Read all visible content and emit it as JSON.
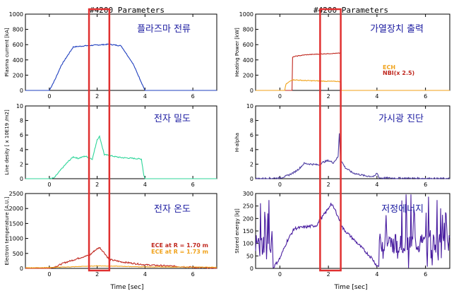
{
  "columns": [
    {
      "title": "#4200 Parameters"
    },
    {
      "title": "#4200 Parameters"
    }
  ],
  "chart_data": [
    {
      "id": "plasma-current",
      "type": "line",
      "label_kr": "플라즈마 전류",
      "ylabel": "Plasma current [kA]",
      "ylim": [
        0,
        1000
      ],
      "yticks": [
        "0",
        "200",
        "400",
        "600",
        "800",
        "1000"
      ],
      "ytick_values": [
        0,
        200,
        400,
        600,
        800,
        1000
      ],
      "xlim": [
        -1,
        7
      ],
      "xticks": [
        "0",
        "2",
        "4",
        "6"
      ],
      "xtick_values": [
        0,
        2,
        4,
        6
      ],
      "series": [
        {
          "color": "#1f3fbf",
          "noise": 6,
          "x": [
            -1,
            0,
            0.25,
            0.5,
            1,
            1.5,
            2,
            2.5,
            3,
            3.5,
            4,
            4.5,
            7
          ],
          "y": [
            0,
            0,
            150,
            330,
            570,
            585,
            595,
            605,
            585,
            350,
            0,
            0,
            0
          ]
        }
      ]
    },
    {
      "id": "line-density",
      "type": "line",
      "label_kr": "전자 밀도",
      "ylabel": "Line desity [ x 10E19 /m2]",
      "ylim": [
        0,
        10
      ],
      "yticks": [
        "0",
        "2",
        "4",
        "6",
        "8",
        "10"
      ],
      "ytick_values": [
        0,
        2,
        4,
        6,
        8,
        10
      ],
      "xlim": [
        -1,
        7
      ],
      "xticks": [
        "0",
        "2",
        "4",
        "6"
      ],
      "xtick_values": [
        0,
        2,
        4,
        6
      ],
      "series": [
        {
          "color": "#2fd69a",
          "noise": 0.08,
          "x": [
            -1,
            0,
            0.2,
            0.5,
            0.8,
            1,
            1.2,
            1.5,
            1.8,
            2,
            2.1,
            2.3,
            2.5,
            2.8,
            3,
            3.5,
            3.85,
            3.95,
            4,
            7
          ],
          "y": [
            0,
            0,
            0.1,
            1.3,
            2.4,
            3,
            2.8,
            3.1,
            2.7,
            5.4,
            5.8,
            3.3,
            3.2,
            3,
            2.9,
            2.8,
            2.7,
            0.5,
            0,
            0
          ]
        }
      ]
    },
    {
      "id": "electron-temperature",
      "type": "line",
      "label_kr": "전자 온도",
      "ylabel": "Electron temperature [A.U.]",
      "ylim": [
        0,
        2500
      ],
      "yticks": [
        "0",
        "500",
        "1000",
        "1500",
        "2000",
        "2500"
      ],
      "ytick_values": [
        0,
        500,
        1000,
        1500,
        2000,
        2500
      ],
      "xlim": [
        -1,
        7
      ],
      "xticks": [
        "0",
        "2",
        "4",
        "6"
      ],
      "xtick_values": [
        0,
        2,
        4,
        6
      ],
      "series": [
        {
          "name": "ECE at R = 1.70 m",
          "color": "#c0281f",
          "noise": 25,
          "x": [
            -1,
            0,
            0.3,
            0.6,
            1,
            1.3,
            1.7,
            1.9,
            2.1,
            2.3,
            2.5,
            3,
            3.5,
            4,
            7
          ],
          "y": [
            0,
            0,
            70,
            180,
            280,
            360,
            450,
            600,
            700,
            520,
            300,
            220,
            170,
            120,
            0
          ]
        },
        {
          "name": "ECE at R = 1.73 m",
          "color": "#f0a21a",
          "noise": 8,
          "x": [
            -1,
            0,
            1,
            2,
            3,
            4,
            7
          ],
          "y": [
            20,
            30,
            55,
            85,
            70,
            50,
            40
          ]
        }
      ]
    },
    {
      "id": "heating-power",
      "type": "line",
      "label_kr": "가열장치 출력",
      "ylabel": "Heating Power [kW]",
      "ylim": [
        0,
        1000
      ],
      "yticks": [
        "0",
        "200",
        "400",
        "600",
        "800",
        "1000"
      ],
      "ytick_values": [
        0,
        200,
        400,
        600,
        800,
        1000
      ],
      "xlim": [
        -1,
        7
      ],
      "xticks": [
        "0",
        "2",
        "4",
        "6"
      ],
      "xtick_values": [
        0,
        2,
        4,
        6
      ],
      "series": [
        {
          "name": "NBI(x 2.5)",
          "color": "#c0281f",
          "noise": 4,
          "x": [
            -1,
            0.5,
            0.51,
            0.6,
            1,
            1.5,
            2,
            2.4,
            2.5,
            2.51,
            7
          ],
          "y": [
            0,
            0,
            430,
            445,
            465,
            475,
            482,
            487,
            490,
            0,
            0
          ]
        },
        {
          "name": "ECH",
          "color": "#f0a21a",
          "noise": 5,
          "x": [
            -1,
            0.2,
            0.25,
            0.5,
            1,
            1.5,
            2,
            2.4,
            2.5,
            2.51,
            7
          ],
          "y": [
            0,
            0,
            80,
            140,
            130,
            125,
            120,
            118,
            115,
            0,
            0
          ]
        }
      ]
    },
    {
      "id": "h-alpha",
      "type": "line",
      "label_kr": "가시광 진단",
      "ylabel": "H-alpha",
      "ylim": [
        0,
        10
      ],
      "yticks": [
        "0",
        "2",
        "4",
        "6",
        "8",
        "10"
      ],
      "ytick_values": [
        0,
        2,
        4,
        6,
        8,
        10
      ],
      "xlim": [
        -1,
        7
      ],
      "xticks": [
        "0",
        "2",
        "4",
        "6"
      ],
      "xtick_values": [
        0,
        2,
        4,
        6
      ],
      "series": [
        {
          "color": "#4a3aa0",
          "noise": 0.12,
          "x": [
            -1,
            0,
            0.3,
            0.6,
            0.8,
            1,
            1.3,
            1.6,
            1.8,
            2,
            2.2,
            2.4,
            2.45,
            2.5,
            2.7,
            3,
            3.5,
            3.9,
            4,
            4.1,
            7
          ],
          "y": [
            0,
            0.1,
            0.4,
            0.9,
            1.4,
            2.1,
            2,
            1.9,
            2.3,
            2.5,
            2.2,
            3,
            6.3,
            2.6,
            1.5,
            0.8,
            0.4,
            0.3,
            0.8,
            0.1,
            0
          ]
        }
      ]
    },
    {
      "id": "stored-energy",
      "type": "line",
      "label_kr": "저정에너지",
      "ylabel": "Stored energy [kJ]",
      "ylim": [
        0,
        300
      ],
      "yticks": [
        "0",
        "50",
        "100",
        "150",
        "200",
        "250",
        "300"
      ],
      "ytick_values": [
        0,
        50,
        100,
        150,
        200,
        250,
        300
      ],
      "xlim": [
        -1,
        7
      ],
      "xticks": [
        "0",
        "2",
        "4",
        "6"
      ],
      "xtick_values": [
        0,
        2,
        4,
        6
      ],
      "series": [
        {
          "color": "#4a1ea0",
          "noise": 6,
          "x": [
            -1,
            -0.3,
            0,
            0.3,
            0.6,
            1,
            1.5,
            2,
            2.1,
            2.3,
            2.6,
            3,
            3.5,
            3.8,
            4,
            7
          ],
          "y": [
            0,
            0,
            40,
            110,
            160,
            165,
            172,
            240,
            260,
            230,
            160,
            120,
            70,
            40,
            10,
            0
          ],
          "noisy_x_ranges": [
            [
              -1,
              -0.3
            ],
            [
              4.1,
              7
            ]
          ],
          "noisy_amp": 300
        }
      ]
    }
  ],
  "highlight": {
    "color": "#e03030",
    "x_range": [
      1.6,
      2.45
    ]
  },
  "time_label": "Time [sec]"
}
